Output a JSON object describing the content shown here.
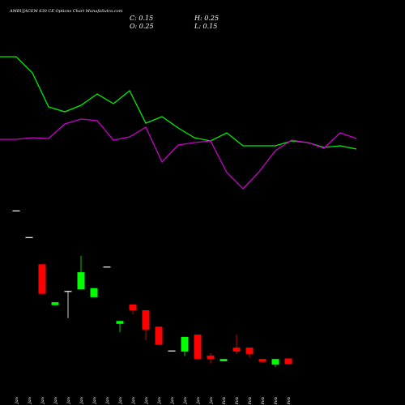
{
  "chart_data": [
    {
      "type": "candlestick",
      "title": "AMBUJACEM 630 CE Options Chart MunafaSutra.com",
      "ohlc_labels": [
        "C: 0.15",
        "H: 0.25",
        "O: 0.25",
        "L: 0.15"
      ],
      "categories": [
        "06 Jan",
        "08 Jan",
        "09 Jan",
        "13 Jan",
        "14 Jan",
        "15 Jan",
        "16 Jan",
        "20 Jan",
        "21 Jan",
        "22 Jan",
        "23 Jan",
        "27 Jan",
        "28 Jan",
        "29 Jan",
        "30 Jan",
        "31 Jan",
        "01 Feb",
        "03 Feb",
        "04 Feb",
        "05 Feb",
        "06 Feb",
        "10 Feb"
      ],
      "open": [
        2.86,
        2.39,
        1.91,
        1.19,
        1.44,
        1.47,
        1.33,
        1.87,
        0.86,
        1.2,
        1.1,
        0.81,
        0.39,
        0.37,
        0.67,
        0.3,
        0.2,
        0.44,
        0.44,
        0.24,
        0.14,
        0.25
      ],
      "high": [
        2.86,
        2.39,
        1.91,
        1.24,
        1.44,
        2.06,
        1.49,
        1.87,
        0.91,
        1.2,
        1.1,
        0.81,
        0.39,
        0.63,
        0.67,
        0.34,
        0.24,
        0.67,
        0.44,
        0.24,
        0.24,
        0.25
      ],
      "low": [
        2.86,
        2.39,
        1.39,
        1.19,
        0.96,
        1.47,
        1.33,
        1.87,
        0.71,
        1.03,
        0.57,
        0.49,
        0.39,
        0.29,
        0.24,
        0.16,
        0.2,
        0.33,
        0.27,
        0.19,
        0.1,
        0.15
      ],
      "close": [
        2.86,
        2.39,
        1.39,
        1.24,
        1.44,
        1.77,
        1.49,
        1.87,
        0.91,
        1.1,
        0.76,
        0.49,
        0.39,
        0.63,
        0.24,
        0.24,
        0.24,
        0.37,
        0.33,
        0.19,
        0.24,
        0.15
      ],
      "up_color": "#00ff00",
      "down_color": "#ff0000",
      "ylim": [
        0,
        3
      ]
    },
    {
      "type": "line",
      "series": [
        {
          "color": "#00ee00",
          "values": [
            180,
            180,
            160,
            118,
            112,
            120,
            134,
            122,
            138,
            98,
            106,
            92,
            80,
            76,
            86,
            70,
            70,
            70,
            76,
            74,
            68,
            70,
            66
          ]
        },
        {
          "color": "#cc00cc",
          "values": [
            78,
            78,
            80,
            79,
            97,
            103,
            101,
            77,
            81,
            93,
            50,
            71,
            74,
            76,
            37,
            17,
            38,
            64,
            77,
            74,
            67,
            86,
            79
          ]
        }
      ],
      "ylim": [
        0,
        200
      ]
    }
  ]
}
